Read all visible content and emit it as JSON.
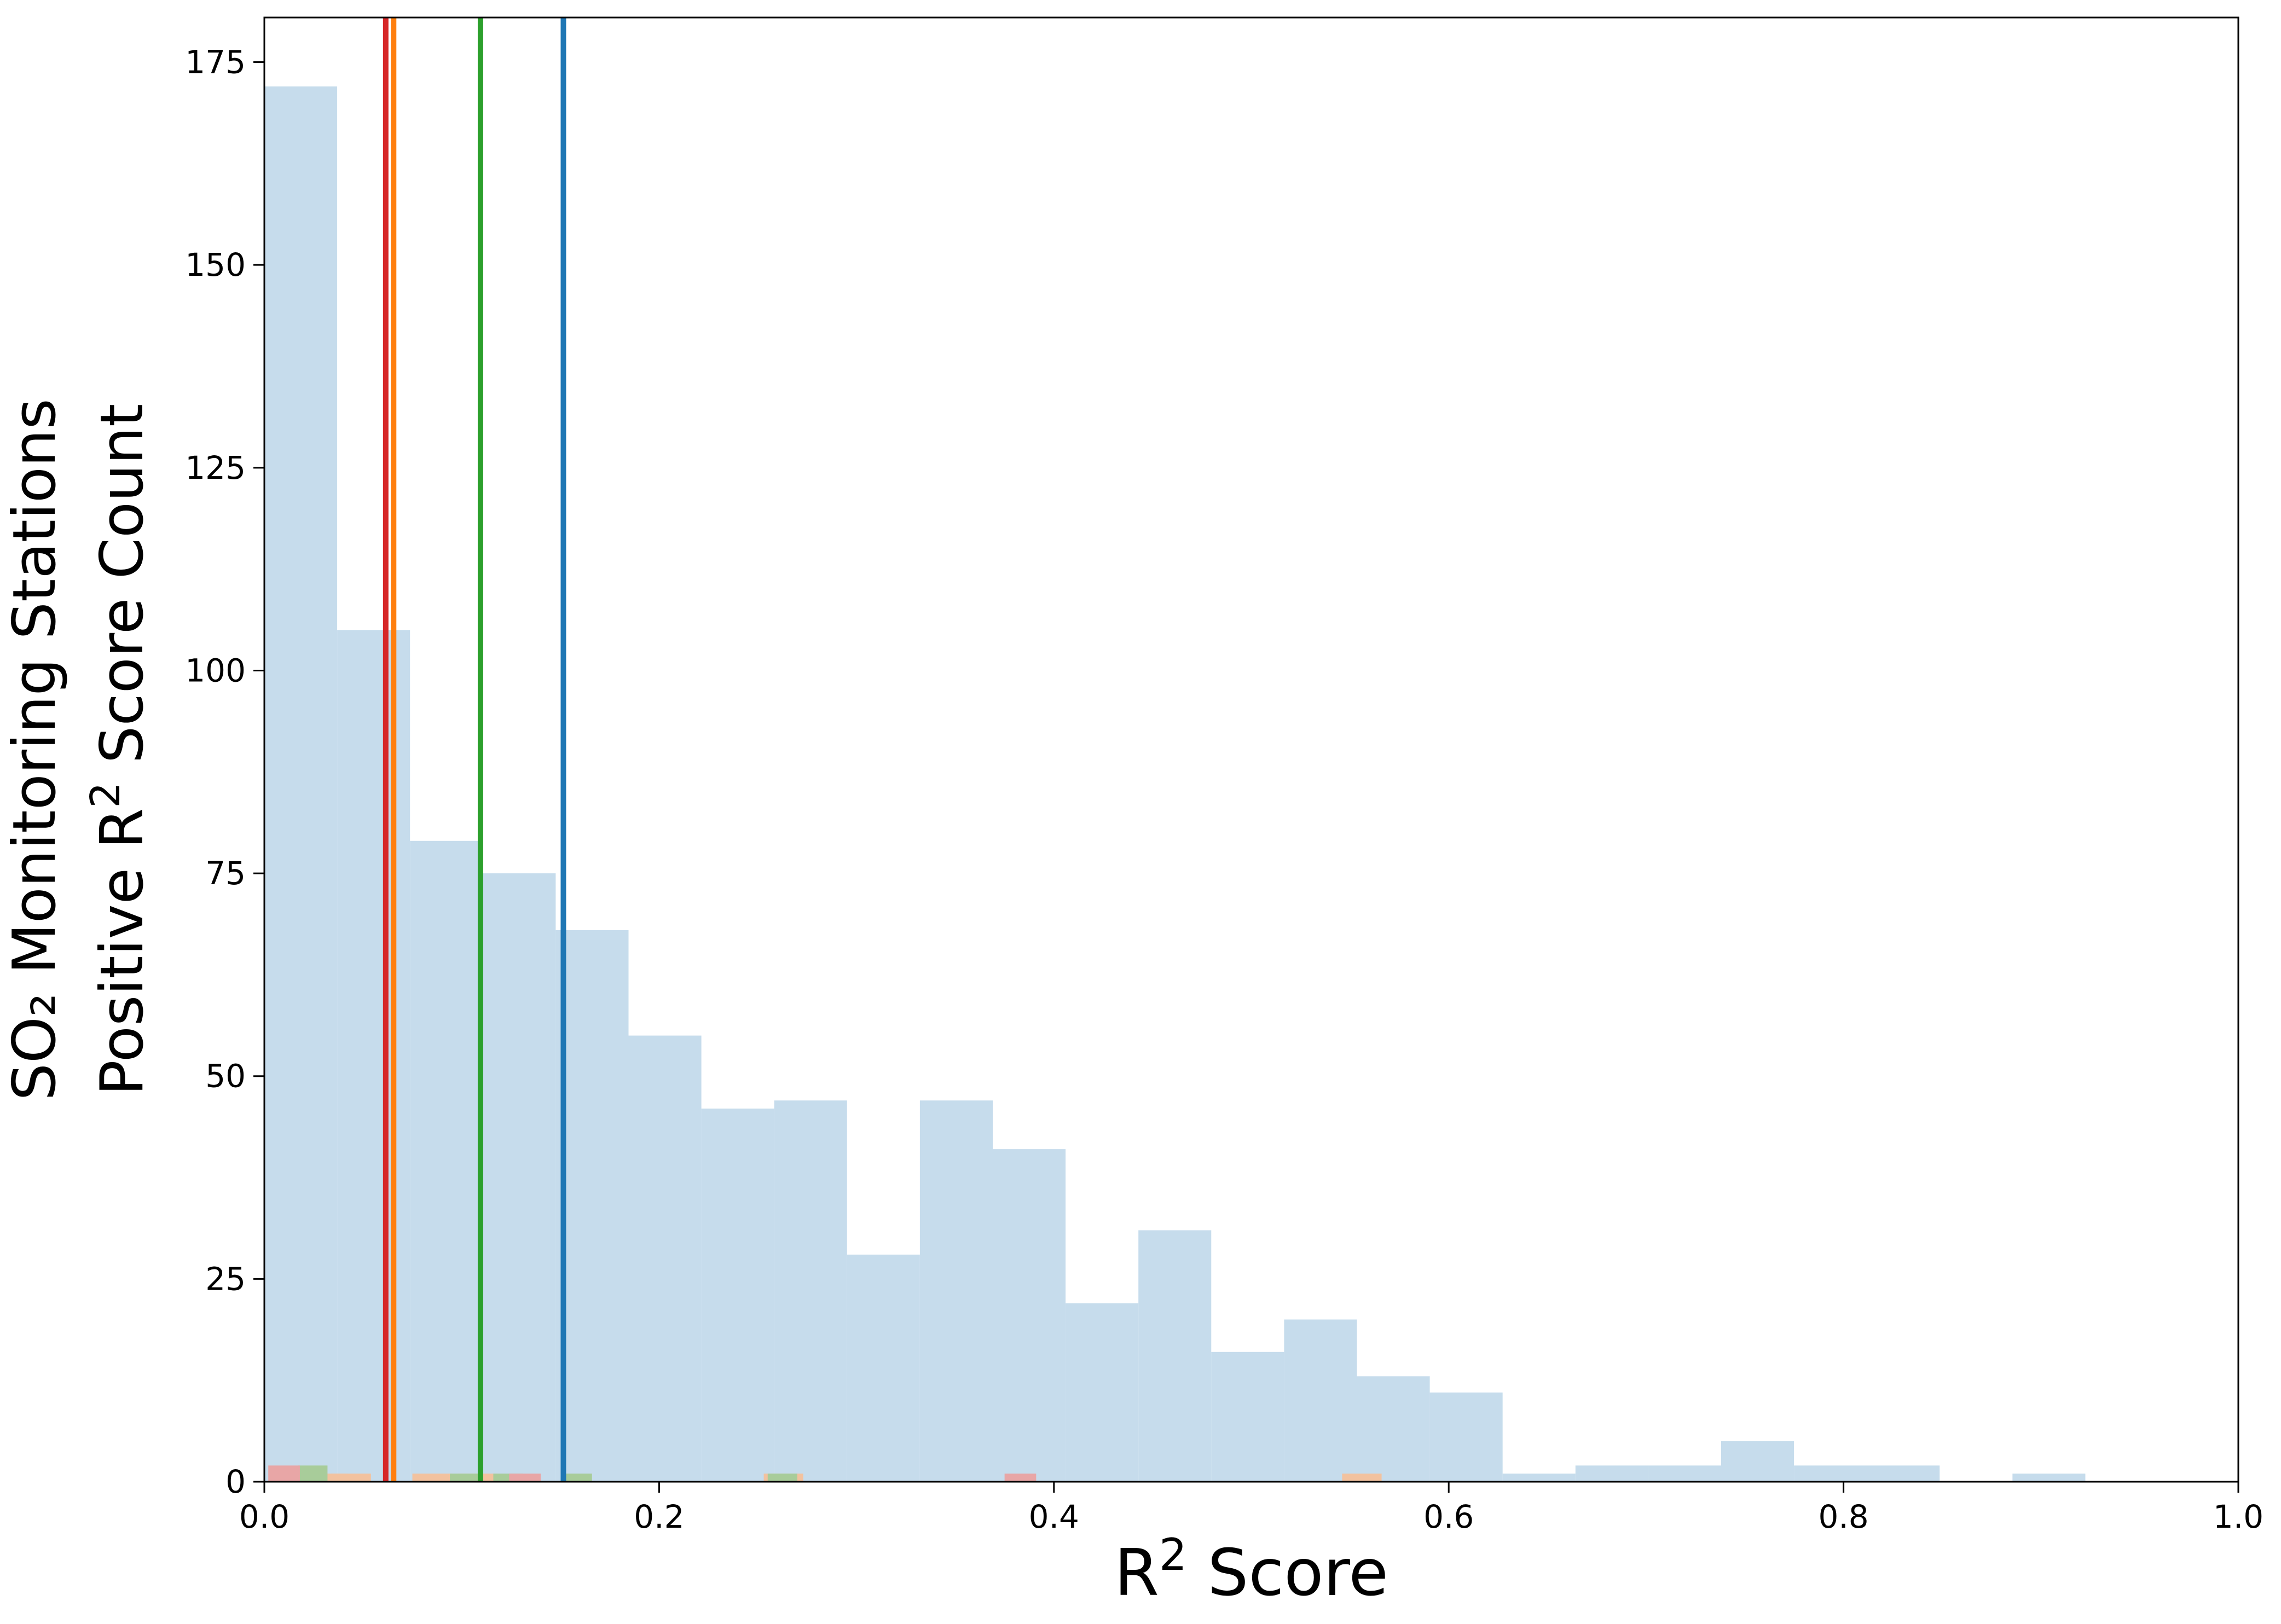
{
  "chart_data": {
    "type": "bar",
    "xlabel": "R",
    "xlabel_sup": "2",
    "xlabel_rest": "Score",
    "ylabel_line1": "SO₂ Monitoring Stations",
    "ylabel_line2_a": "Positive R",
    "ylabel_line2_sup": "2",
    "ylabel_line2_b": "Score Count",
    "xlim": [
      0.0,
      1.0
    ],
    "ylim": [
      0,
      180.5
    ],
    "x_ticks": [
      0.0,
      0.2,
      0.4,
      0.6,
      0.8,
      1.0
    ],
    "x_tick_labels": [
      "0.0",
      "0.2",
      "0.4",
      "0.6",
      "0.8",
      "1.0"
    ],
    "y_ticks": [
      0,
      25,
      50,
      75,
      100,
      125,
      150,
      175
    ],
    "y_tick_labels": [
      "0",
      "25",
      "50",
      "75",
      "100",
      "125",
      "150",
      "175"
    ],
    "grid": false,
    "series": [
      {
        "color": "#c6dcec",
        "bin_width": 0.0369,
        "bins": [
          {
            "x0": 0.0,
            "count": 172
          },
          {
            "x0": 0.0369,
            "count": 105
          },
          {
            "x0": 0.0738,
            "count": 79
          },
          {
            "x0": 0.1107,
            "count": 75
          },
          {
            "x0": 0.1476,
            "count": 68
          },
          {
            "x0": 0.1845,
            "count": 55
          },
          {
            "x0": 0.2214,
            "count": 46
          },
          {
            "x0": 0.2583,
            "count": 47
          },
          {
            "x0": 0.2952,
            "count": 28
          },
          {
            "x0": 0.3321,
            "count": 47
          },
          {
            "x0": 0.369,
            "count": 41
          },
          {
            "x0": 0.4059,
            "count": 22
          },
          {
            "x0": 0.4428,
            "count": 31
          },
          {
            "x0": 0.4797,
            "count": 16
          },
          {
            "x0": 0.5166,
            "count": 20
          },
          {
            "x0": 0.5535,
            "count": 13
          },
          {
            "x0": 0.5904,
            "count": 11
          },
          {
            "x0": 0.6273,
            "count": 1
          },
          {
            "x0": 0.6642,
            "count": 2
          },
          {
            "x0": 0.7011,
            "count": 2
          },
          {
            "x0": 0.738,
            "count": 5
          },
          {
            "x0": 0.7749,
            "count": 2
          },
          {
            "x0": 0.8118,
            "count": 2
          },
          {
            "x0": 0.8487,
            "count": 0
          },
          {
            "x0": 0.8856,
            "count": 1
          }
        ]
      },
      {
        "color": "#f2c29f",
        "bin_width": 0.02,
        "bins": [
          {
            "x0": 0.003,
            "count": 1
          },
          {
            "x0": 0.022,
            "count": 1
          },
          {
            "x0": 0.034,
            "count": 1
          },
          {
            "x0": 0.075,
            "count": 1
          },
          {
            "x0": 0.098,
            "count": 1
          },
          {
            "x0": 0.253,
            "count": 1
          },
          {
            "x0": 0.546,
            "count": 1
          }
        ]
      },
      {
        "color": "#a8cc9a",
        "bin_width": 0.015,
        "bins": [
          {
            "x0": 0.011,
            "count": 1
          },
          {
            "x0": 0.017,
            "count": 2
          },
          {
            "x0": 0.094,
            "count": 1
          },
          {
            "x0": 0.116,
            "count": 1
          },
          {
            "x0": 0.151,
            "count": 1
          },
          {
            "x0": 0.255,
            "count": 1
          }
        ]
      },
      {
        "color": "#e8a6a6",
        "bin_width": 0.016,
        "bins": [
          {
            "x0": 0.002,
            "count": 2
          },
          {
            "x0": 0.124,
            "count": 1
          },
          {
            "x0": 0.375,
            "count": 1
          }
        ]
      }
    ],
    "vlines": [
      {
        "x": 0.0615,
        "color": "#d62728"
      },
      {
        "x": 0.0655,
        "color": "#ff7f0e"
      },
      {
        "x": 0.1095,
        "color": "#2ca02c"
      },
      {
        "x": 0.1515,
        "color": "#1f77b4"
      }
    ]
  }
}
